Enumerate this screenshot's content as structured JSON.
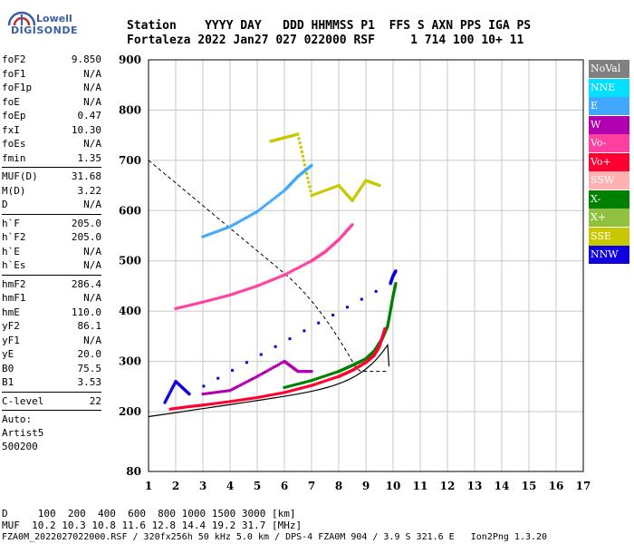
{
  "logo": {
    "line1": "Lowell",
    "line2": "DIGISONDE"
  },
  "header": {
    "line1": "Station    YYYY DAY   DDD HHMMSS P1  FFS S AXN PPS IGA PS",
    "line2": "Fortaleza 2022 Jan27 027 022000 RSF     1 714 100 10+ 11"
  },
  "params": {
    "group1": [
      {
        "name": "foF2",
        "value": "9.850"
      },
      {
        "name": "foF1",
        "value": "N/A"
      },
      {
        "name": "foF1p",
        "value": "N/A"
      },
      {
        "name": "foE",
        "value": "N/A"
      },
      {
        "name": "foEp",
        "value": "0.47"
      },
      {
        "name": "fxI",
        "value": "10.30"
      },
      {
        "name": "foEs",
        "value": "N/A"
      },
      {
        "name": "fmin",
        "value": "1.35"
      }
    ],
    "group2": [
      {
        "name": "MUF(D)",
        "value": "31.68"
      },
      {
        "name": "M(D)",
        "value": "3.22"
      },
      {
        "name": "D",
        "value": "N/A"
      }
    ],
    "group3": [
      {
        "name": "h`F",
        "value": "205.0"
      },
      {
        "name": "h`F2",
        "value": "205.0"
      },
      {
        "name": "h`E",
        "value": "N/A"
      },
      {
        "name": "h`Es",
        "value": "N/A"
      }
    ],
    "group4": [
      {
        "name": "hmF2",
        "value": "286.4"
      },
      {
        "name": "hmF1",
        "value": "N/A"
      },
      {
        "name": "hmE",
        "value": "110.0"
      },
      {
        "name": "yF2",
        "value": "86.1"
      },
      {
        "name": "yF1",
        "value": "N/A"
      },
      {
        "name": "yE",
        "value": "20.0"
      },
      {
        "name": "B0",
        "value": "75.5"
      },
      {
        "name": "B1",
        "value": "3.53"
      }
    ],
    "group5": [
      {
        "name": "C-level",
        "value": "22"
      }
    ],
    "notes": [
      "Auto:",
      "Artist5",
      "500200"
    ]
  },
  "legend": [
    {
      "label": "NoVal",
      "color": "#808080"
    },
    {
      "label": "NNE",
      "color": "#00e0ff"
    },
    {
      "label": "E",
      "color": "#40a8ff"
    },
    {
      "label": "W",
      "color": "#b000b0"
    },
    {
      "label": "Vo-",
      "color": "#ff40a0"
    },
    {
      "label": "Vo+",
      "color": "#ff0030"
    },
    {
      "label": "SSW",
      "color": "#ffb0b0"
    },
    {
      "label": "X-",
      "color": "#008000"
    },
    {
      "label": "X+",
      "color": "#90c040"
    },
    {
      "label": "SSE",
      "color": "#c8c800"
    },
    {
      "label": "NNW",
      "color": "#1000e0"
    }
  ],
  "bottom": {
    "line1": "D     100  200  400  600  800 1000 1500 3000 [km]",
    "line2": "MUF  10.2 10.3 10.8 11.6 12.8 14.4 19.2 31.7 [MHz]",
    "line3": "FZA0M_2022027022000.RSF / 320fx256h 50 kHz 5.0 km / DPS-4 FZA0M 904 / 3.9 S 321.6 E   Ion2Png 1.3.20"
  },
  "chart_data": {
    "type": "scatter",
    "x_ticks": [
      "1",
      "2",
      "3",
      "4",
      "5",
      "6",
      "7",
      "8",
      "9",
      "10",
      "11",
      "12",
      "13",
      "14",
      "15",
      "16",
      "17"
    ],
    "y_ticks": [
      "80",
      "200",
      "300",
      "400",
      "500",
      "600",
      "700",
      "800",
      "900"
    ],
    "xlim": [
      1,
      17
    ],
    "y_axis_note": "virtual height (km); irregular scale with 80 at bottom then 200..900",
    "grid": true,
    "series": [
      {
        "name": "X-",
        "color": "#008000",
        "x": [
          6.0,
          7.0,
          8.0,
          8.5,
          9.0,
          9.3,
          9.6,
          9.8,
          9.9,
          10.0,
          10.1
        ],
        "y": [
          248,
          262,
          280,
          292,
          305,
          320,
          345,
          370,
          400,
          430,
          455
        ]
      },
      {
        "name": "Vo+",
        "color": "#ff0030",
        "x": [
          1.8,
          2.5,
          3.0,
          4.0,
          5.0,
          6.0,
          7.0,
          8.0,
          8.5,
          9.0,
          9.3,
          9.5,
          9.7
        ],
        "y": [
          205,
          210,
          213,
          220,
          228,
          238,
          252,
          270,
          282,
          298,
          312,
          330,
          365
        ]
      },
      {
        "name": "Vo-",
        "color": "#ff40a0",
        "x": [
          2.0,
          3.0,
          4.0,
          5.0,
          6.0,
          7.0,
          7.5,
          8.0,
          8.5
        ],
        "y": [
          405,
          418,
          432,
          450,
          472,
          500,
          518,
          542,
          572
        ]
      },
      {
        "name": "SSE",
        "color": "#c8c800",
        "x": [
          5.5,
          6.0,
          6.5,
          7.0,
          8.0,
          8.5,
          9.0,
          9.5
        ],
        "y": [
          738,
          745,
          752,
          630,
          650,
          620,
          660,
          650
        ]
      },
      {
        "name": "E",
        "color": "#40a8ff",
        "x": [
          3.0,
          4.0,
          5.0,
          6.0,
          6.5,
          7.0
        ],
        "y": [
          548,
          568,
          598,
          640,
          668,
          690
        ]
      },
      {
        "name": "W",
        "color": "#b000b0",
        "x": [
          3.0,
          4.0,
          5.0,
          6.0,
          6.5,
          7.0
        ],
        "y": [
          235,
          242,
          270,
          300,
          280,
          280
        ]
      },
      {
        "name": "NNW",
        "color": "#1000e0",
        "x": [
          1.6,
          2.0,
          2.5,
          9.9,
          10.0,
          10.1
        ],
        "y": [
          218,
          260,
          235,
          455,
          470,
          480
        ]
      }
    ]
  }
}
